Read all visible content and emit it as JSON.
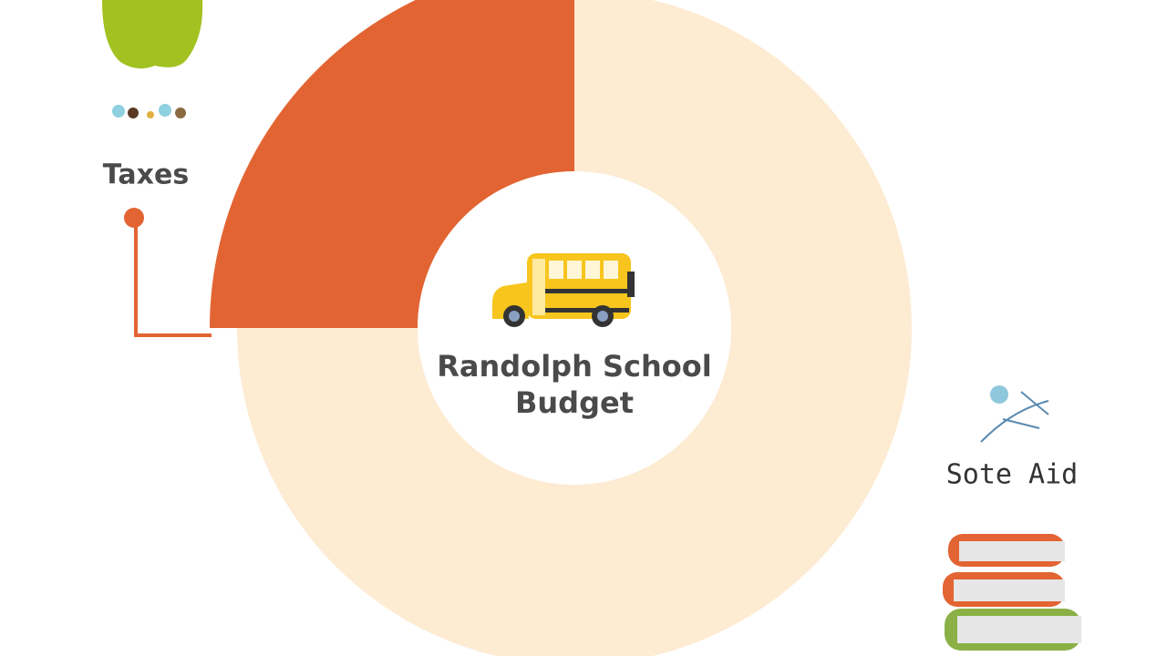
{
  "chart_data": {
    "type": "donut",
    "title": "Randolph School Budget",
    "categories": [
      "Taxes",
      "Sote Aid"
    ],
    "values": [
      25,
      75
    ],
    "colors": [
      "#e36433",
      "#fdebd2"
    ]
  }
}
